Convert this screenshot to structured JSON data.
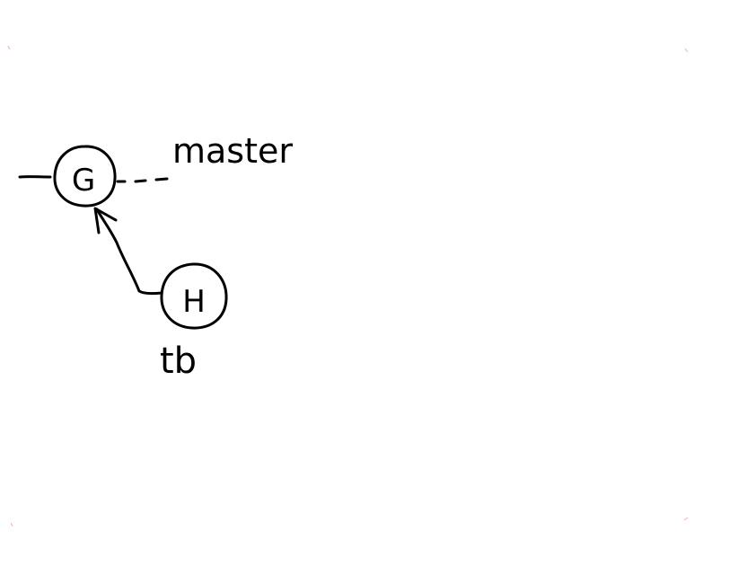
{
  "diagram": {
    "nodes": [
      {
        "id": "G",
        "label": "G"
      },
      {
        "id": "H",
        "label": "H"
      }
    ],
    "branches": [
      {
        "name": "master",
        "points_to": "G"
      },
      {
        "name": "tb",
        "points_to": "H"
      }
    ],
    "edges": [
      {
        "from": "H",
        "to": "G",
        "style": "arrow"
      }
    ]
  },
  "colors": {
    "ink": "#000000",
    "background": "#ffffff",
    "corner_marks": "#f3b0b0"
  }
}
